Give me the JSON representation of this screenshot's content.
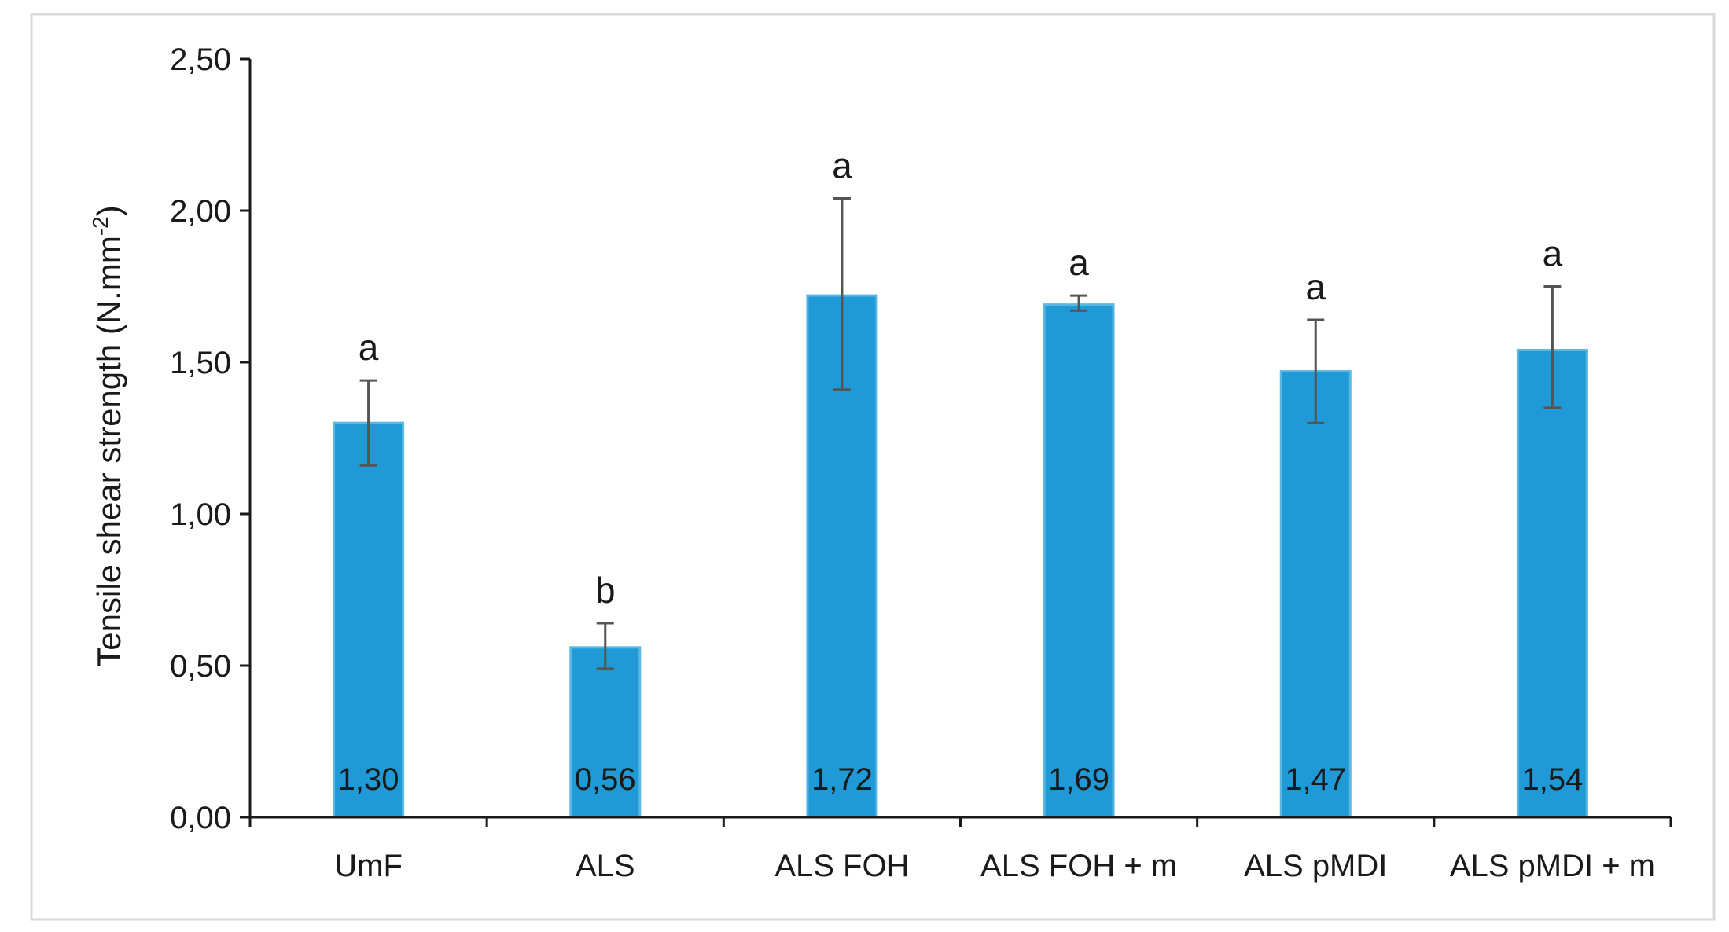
{
  "chart_data": {
    "type": "bar",
    "title": "",
    "xlabel": "",
    "ylabel": "Tensile shear strength (N.mm",
    "ylabel_superscript": "-2",
    "ylabel_suffix": ")",
    "categories": [
      "UmF",
      "ALS",
      "ALS FOH",
      "ALS FOH + m",
      "ALS pMDI",
      "ALS pMDI + m"
    ],
    "values": [
      1.3,
      0.56,
      1.72,
      1.69,
      1.47,
      1.54
    ],
    "value_labels": [
      "1,30",
      "0,56",
      "1,72",
      "1,69",
      "1,47",
      "1,54"
    ],
    "error_low": [
      1.16,
      0.49,
      1.41,
      1.67,
      1.3,
      1.35
    ],
    "error_high": [
      1.44,
      0.64,
      2.04,
      1.72,
      1.64,
      1.75
    ],
    "significance": [
      "a",
      "b",
      "a",
      "a",
      "a",
      "a"
    ],
    "ylim": [
      0,
      2.5
    ],
    "yticks": [
      0,
      0.5,
      1.0,
      1.5,
      2.0,
      2.5
    ],
    "ytick_labels": [
      "0,00",
      "0,50",
      "1,00",
      "1,50",
      "2,00",
      "2,50"
    ],
    "grid": false,
    "legend": "none",
    "colors": {
      "bar_fill": "#1f9ad6",
      "bar_edge": "#5ab6e3",
      "error_bar": "#555555",
      "axis": "#1a1a1a",
      "frame": "#d9d9d9"
    }
  }
}
